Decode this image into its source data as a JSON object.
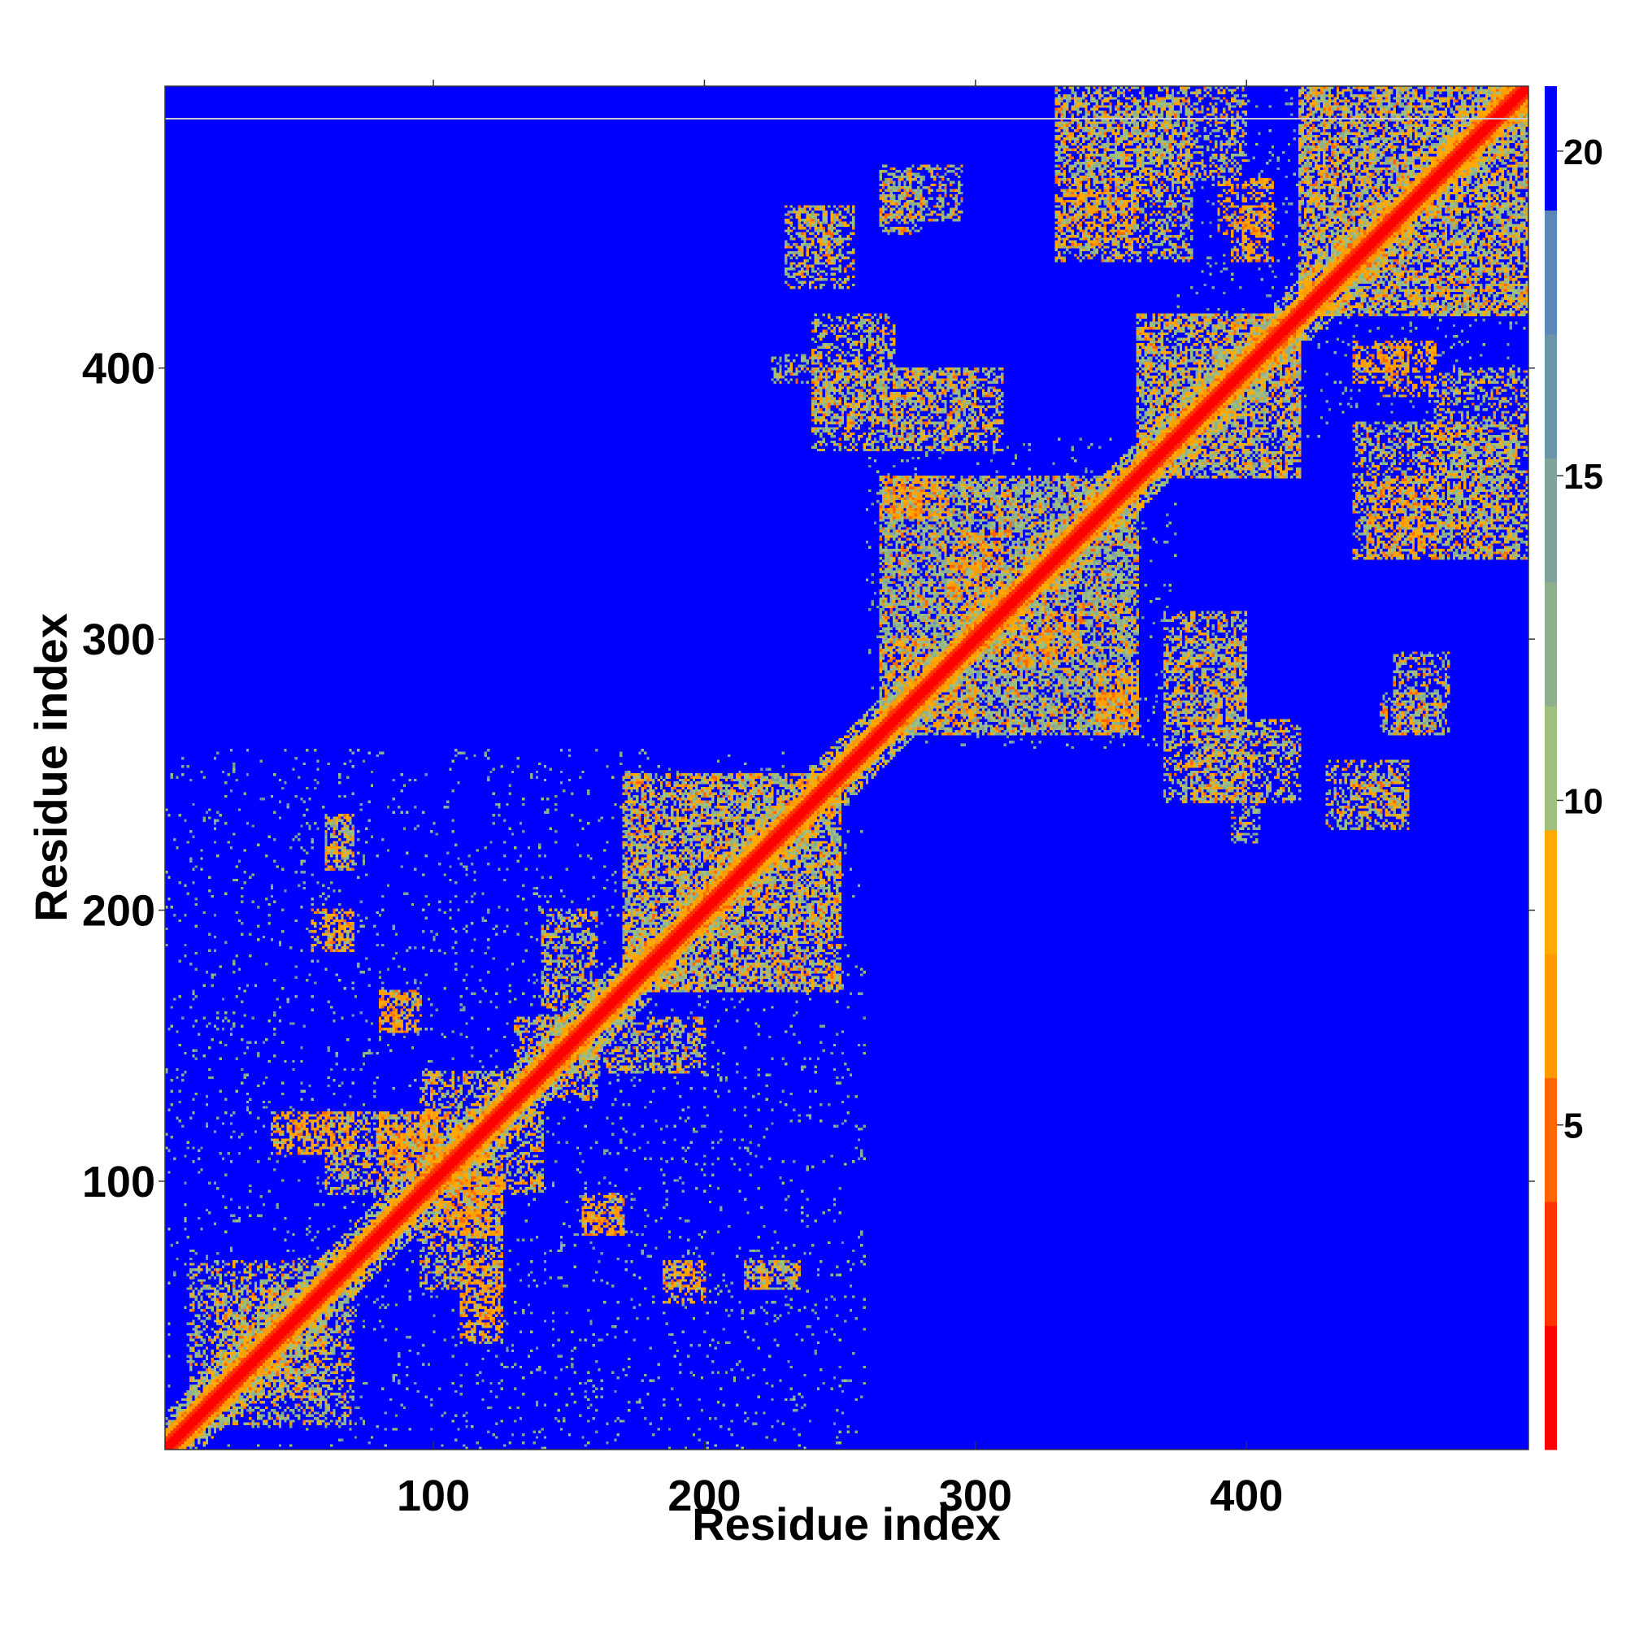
{
  "chart_data": {
    "type": "heatmap",
    "title": "",
    "xlabel": "Residue index",
    "ylabel": "Residue index",
    "n_residues": 504,
    "xlim": [
      1,
      504
    ],
    "ylim": [
      1,
      504
    ],
    "x_ticks": [
      100,
      200,
      300,
      400
    ],
    "y_ticks": [
      100,
      200,
      300,
      400
    ],
    "colorbar": {
      "ticks": [
        5,
        10,
        15,
        20
      ],
      "range": [
        0,
        21
      ],
      "colors": [
        "#ff0000",
        "#ff3300",
        "#ff6600",
        "#ff9900",
        "#ffaa00",
        "#9fbf80",
        "#8fb08c",
        "#7ea39a",
        "#6b94aa",
        "#5a86b8",
        "#0000ff"
      ]
    },
    "background_color": "#0000ff",
    "diagonal_color": "#ff0000",
    "contact_color": "#8fb08c",
    "near_contact_color": "#ffa500",
    "domains": [
      {
        "start": 1,
        "end": 260
      },
      {
        "start": 260,
        "end": 375
      },
      {
        "start": 375,
        "end": 504
      }
    ],
    "contact_bands": [
      {
        "x": [
          60,
          140
        ],
        "y": [
          95,
          125
        ],
        "value": 8
      },
      {
        "x": [
          10,
          60
        ],
        "y": [
          20,
          70
        ],
        "value": 9
      },
      {
        "x": [
          80,
          100
        ],
        "y": [
          100,
          120
        ],
        "value": 6
      },
      {
        "x": [
          105,
          125
        ],
        "y": [
          80,
          100
        ],
        "value": 6
      },
      {
        "x": [
          110,
          125
        ],
        "y": [
          50,
          60
        ],
        "value": 6
      },
      {
        "x": [
          155,
          170
        ],
        "y": [
          80,
          90
        ],
        "value": 6
      },
      {
        "x": [
          185,
          200
        ],
        "y": [
          60,
          70
        ],
        "value": 6
      },
      {
        "x": [
          215,
          235
        ],
        "y": [
          60,
          70
        ],
        "value": 9
      },
      {
        "x": [
          55,
          70
        ],
        "y": [
          185,
          200
        ],
        "value": 8
      },
      {
        "x": [
          60,
          70
        ],
        "y": [
          215,
          235
        ],
        "value": 9
      },
      {
        "x": [
          80,
          95
        ],
        "y": [
          155,
          170
        ],
        "value": 6
      },
      {
        "x": [
          40,
          70
        ],
        "y": [
          110,
          125
        ],
        "value": 6
      },
      {
        "x": [
          170,
          250
        ],
        "y": [
          170,
          250
        ],
        "value": 9
      },
      {
        "x": [
          130,
          200
        ],
        "y": [
          140,
          160
        ],
        "value": 9
      },
      {
        "x": [
          270,
          290
        ],
        "y": [
          345,
          360
        ],
        "value": 6
      },
      {
        "x": [
          285,
          300
        ],
        "y": [
          265,
          280
        ],
        "value": 6
      },
      {
        "x": [
          290,
          305
        ],
        "y": [
          315,
          330
        ],
        "value": 6
      },
      {
        "x": [
          325,
          340
        ],
        "y": [
          295,
          310
        ],
        "value": 6
      },
      {
        "x": [
          345,
          360
        ],
        "y": [
          265,
          280
        ],
        "value": 6
      },
      {
        "x": [
          265,
          360
        ],
        "y": [
          265,
          360
        ],
        "value": 10
      },
      {
        "x": [
          370,
          400
        ],
        "y": [
          240,
          300
        ],
        "value": 9
      },
      {
        "x": [
          395,
          405
        ],
        "y": [
          225,
          245
        ],
        "value": 10
      },
      {
        "x": [
          440,
          460
        ],
        "y": [
          235,
          250
        ],
        "value": 9
      },
      {
        "x": [
          450,
          470
        ],
        "y": [
          265,
          280
        ],
        "value": 10
      },
      {
        "x": [
          240,
          270
        ],
        "y": [
          380,
          420
        ],
        "value": 9
      },
      {
        "x": [
          270,
          310
        ],
        "y": [
          370,
          400
        ],
        "value": 9
      },
      {
        "x": [
          330,
          360
        ],
        "y": [
          445,
          470
        ],
        "value": 6
      },
      {
        "x": [
          395,
          410
        ],
        "y": [
          440,
          460
        ],
        "value": 6
      },
      {
        "x": [
          360,
          420
        ],
        "y": [
          360,
          420
        ],
        "value": 9
      },
      {
        "x": [
          420,
          504
        ],
        "y": [
          420,
          504
        ],
        "value": 9
      },
      {
        "x": [
          440,
          500
        ],
        "y": [
          330,
          380
        ],
        "value": 9
      },
      {
        "x": [
          450,
          470
        ],
        "y": [
          390,
          410
        ],
        "value": 6
      },
      {
        "x": [
          330,
          400
        ],
        "y": [
          470,
          504
        ],
        "value": 9
      },
      {
        "x": [
          230,
          255
        ],
        "y": [
          430,
          460
        ],
        "value": 9
      },
      {
        "x": [
          265,
          295
        ],
        "y": [
          455,
          475
        ],
        "value": 10
      }
    ]
  }
}
